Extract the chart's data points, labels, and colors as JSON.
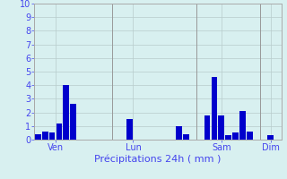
{
  "bars": [
    {
      "x": 1,
      "height": 0.4
    },
    {
      "x": 2,
      "height": 0.6
    },
    {
      "x": 3,
      "height": 0.5
    },
    {
      "x": 4,
      "height": 1.2
    },
    {
      "x": 5,
      "height": 4.0
    },
    {
      "x": 6,
      "height": 2.6
    },
    {
      "x": 14,
      "height": 1.5
    },
    {
      "x": 21,
      "height": 1.0
    },
    {
      "x": 22,
      "height": 0.4
    },
    {
      "x": 25,
      "height": 1.8
    },
    {
      "x": 26,
      "height": 4.6
    },
    {
      "x": 27,
      "height": 1.8
    },
    {
      "x": 28,
      "height": 0.3
    },
    {
      "x": 29,
      "height": 0.5
    },
    {
      "x": 30,
      "height": 2.1
    },
    {
      "x": 31,
      "height": 0.6
    },
    {
      "x": 34,
      "height": 0.3
    }
  ],
  "day_labels": [
    {
      "label": "Ven",
      "x": 3.5
    },
    {
      "label": "Lun",
      "x": 14.5
    },
    {
      "label": "Sam",
      "x": 27.0
    },
    {
      "label": "Dim",
      "x": 34.0
    }
  ],
  "day_lines": [
    0.5,
    11.5,
    23.5,
    32.5
  ],
  "bar_color": "#0000cc",
  "bar_width": 0.85,
  "ylim": [
    0,
    10
  ],
  "yticks": [
    0,
    1,
    2,
    3,
    4,
    5,
    6,
    7,
    8,
    9,
    10
  ],
  "xlim": [
    0.5,
    35.5
  ],
  "xlabel": "Précipitations 24h ( mm )",
  "bg_color": "#d8f0f0",
  "grid_color": "#b8cccc",
  "xlabel_color": "#4444ee",
  "label_color": "#4444ee",
  "tick_color": "#4444ee",
  "spine_color": "#aaaaaa"
}
